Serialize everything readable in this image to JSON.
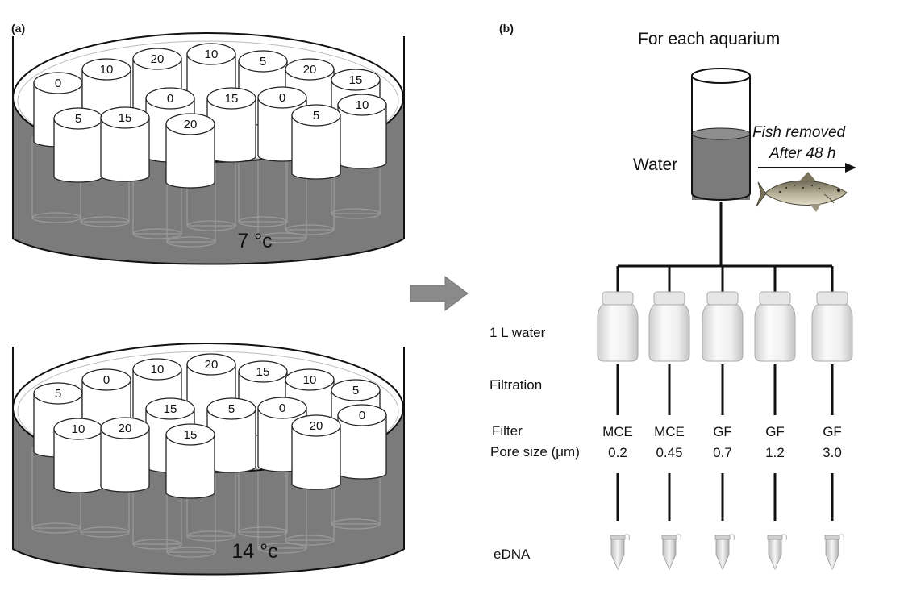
{
  "panel_a": {
    "label": "(a)",
    "tanks": [
      {
        "temperature": "7 °c",
        "back_row": [
          "0",
          "10",
          "20",
          "10",
          "5",
          "20",
          "15"
        ],
        "middle_row": [
          "0",
          "15",
          "0",
          "10"
        ],
        "front_row": [
          "5",
          "15",
          "20",
          "5"
        ]
      },
      {
        "temperature": "14 °c",
        "back_row": [
          "5",
          "0",
          "10",
          "20",
          "15",
          "10",
          "5"
        ],
        "middle_row": [
          "15",
          "5",
          "0",
          "0"
        ],
        "front_row": [
          "10",
          "20",
          "15",
          "20"
        ]
      }
    ]
  },
  "panel_b": {
    "label": "(b)",
    "title": "For each aquarium",
    "water_label": "Water",
    "fish_text_line1": "Fish removed",
    "fish_text_line2": "After 48 h",
    "row_labels": {
      "water": "1 L water",
      "filtration": "Filtration",
      "filter": "Filter",
      "pore_size": "Pore size (μm)",
      "edna": "eDNA"
    },
    "filters": [
      {
        "type": "MCE",
        "pore": "0.2"
      },
      {
        "type": "MCE",
        "pore": "0.45"
      },
      {
        "type": "GF",
        "pore": "0.7"
      },
      {
        "type": "GF",
        "pore": "1.2"
      },
      {
        "type": "GF",
        "pore": "3.0"
      }
    ]
  },
  "colors": {
    "water": "#7b7b7b",
    "water_dark": "#5e5e5e",
    "arrow": "#8a8a8a",
    "line": "#111111"
  }
}
